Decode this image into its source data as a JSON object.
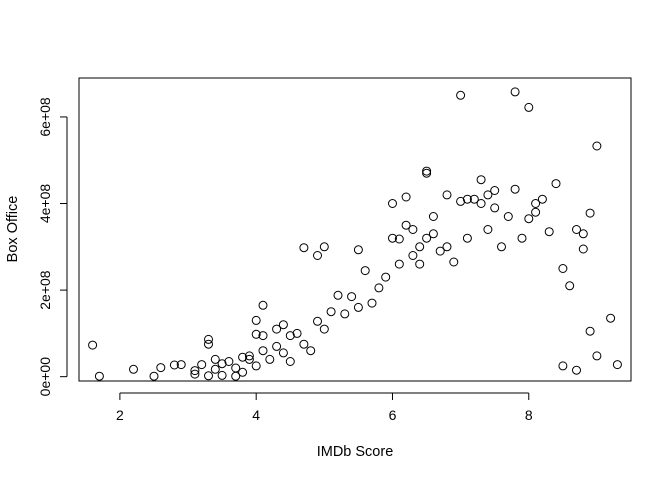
{
  "chart_data": {
    "type": "scatter",
    "title": "",
    "xlabel": "IMDb Score",
    "ylabel": "Box Office",
    "xlim": [
      1.4,
      9.5
    ],
    "ylim": [
      -10000000,
      690000000
    ],
    "xticks": [
      2,
      4,
      6,
      8
    ],
    "xtick_labels": [
      "2",
      "4",
      "6",
      "8"
    ],
    "yticks": [
      0,
      200000000,
      400000000,
      600000000
    ],
    "ytick_labels": [
      "0e+00",
      "2e+08",
      "4e+08",
      "6e+08"
    ],
    "grid": false,
    "legend": "none",
    "marker": "open-circle",
    "color": "#000000",
    "series": [
      {
        "points": [
          [
            1.6,
            73000000
          ],
          [
            1.7,
            1000000
          ],
          [
            2.2,
            17000000
          ],
          [
            2.5,
            1000000
          ],
          [
            2.6,
            21000000
          ],
          [
            2.8,
            27000000
          ],
          [
            2.9,
            28000000
          ],
          [
            3.1,
            6000000
          ],
          [
            3.1,
            14000000
          ],
          [
            3.2,
            28000000
          ],
          [
            3.3,
            75000000
          ],
          [
            3.3,
            86000000
          ],
          [
            3.3,
            2000000
          ],
          [
            3.4,
            17000000
          ],
          [
            3.4,
            40000000
          ],
          [
            3.5,
            30000000
          ],
          [
            3.5,
            3000000
          ],
          [
            3.6,
            35000000
          ],
          [
            3.7,
            20000000
          ],
          [
            3.7,
            1000000
          ],
          [
            3.8,
            45000000
          ],
          [
            3.8,
            10000000
          ],
          [
            3.9,
            40000000
          ],
          [
            3.9,
            48000000
          ],
          [
            4.0,
            98000000
          ],
          [
            4.0,
            130000000
          ],
          [
            4.0,
            25000000
          ],
          [
            4.1,
            165000000
          ],
          [
            4.1,
            95000000
          ],
          [
            4.1,
            60000000
          ],
          [
            4.2,
            40000000
          ],
          [
            4.3,
            70000000
          ],
          [
            4.3,
            110000000
          ],
          [
            4.4,
            120000000
          ],
          [
            4.4,
            55000000
          ],
          [
            4.5,
            95000000
          ],
          [
            4.5,
            35000000
          ],
          [
            4.6,
            100000000
          ],
          [
            4.7,
            298000000
          ],
          [
            4.7,
            75000000
          ],
          [
            4.8,
            60000000
          ],
          [
            4.9,
            280000000
          ],
          [
            4.9,
            128000000
          ],
          [
            5.0,
            300000000
          ],
          [
            5.0,
            110000000
          ],
          [
            5.1,
            150000000
          ],
          [
            5.2,
            188000000
          ],
          [
            5.3,
            145000000
          ],
          [
            5.4,
            185000000
          ],
          [
            5.5,
            293000000
          ],
          [
            5.5,
            160000000
          ],
          [
            5.6,
            245000000
          ],
          [
            5.7,
            170000000
          ],
          [
            5.8,
            205000000
          ],
          [
            5.9,
            230000000
          ],
          [
            6.0,
            400000000
          ],
          [
            6.0,
            320000000
          ],
          [
            6.1,
            318000000
          ],
          [
            6.1,
            260000000
          ],
          [
            6.2,
            415000000
          ],
          [
            6.2,
            350000000
          ],
          [
            6.3,
            340000000
          ],
          [
            6.3,
            280000000
          ],
          [
            6.4,
            300000000
          ],
          [
            6.4,
            260000000
          ],
          [
            6.5,
            475000000
          ],
          [
            6.5,
            470000000
          ],
          [
            6.5,
            320000000
          ],
          [
            6.6,
            370000000
          ],
          [
            6.6,
            330000000
          ],
          [
            6.7,
            290000000
          ],
          [
            6.8,
            420000000
          ],
          [
            6.8,
            300000000
          ],
          [
            6.9,
            265000000
          ],
          [
            7.0,
            405000000
          ],
          [
            7.0,
            650000000
          ],
          [
            7.1,
            410000000
          ],
          [
            7.1,
            320000000
          ],
          [
            7.2,
            410000000
          ],
          [
            7.3,
            455000000
          ],
          [
            7.3,
            400000000
          ],
          [
            7.4,
            420000000
          ],
          [
            7.4,
            340000000
          ],
          [
            7.5,
            430000000
          ],
          [
            7.5,
            390000000
          ],
          [
            7.6,
            300000000
          ],
          [
            7.7,
            370000000
          ],
          [
            7.8,
            433000000
          ],
          [
            7.8,
            658000000
          ],
          [
            7.9,
            320000000
          ],
          [
            8.0,
            622000000
          ],
          [
            8.0,
            365000000
          ],
          [
            8.1,
            400000000
          ],
          [
            8.1,
            380000000
          ],
          [
            8.2,
            410000000
          ],
          [
            8.3,
            335000000
          ],
          [
            8.4,
            446000000
          ],
          [
            8.5,
            250000000
          ],
          [
            8.6,
            210000000
          ],
          [
            8.7,
            340000000
          ],
          [
            8.8,
            330000000
          ],
          [
            8.8,
            295000000
          ],
          [
            8.9,
            378000000
          ],
          [
            8.9,
            105000000
          ],
          [
            9.0,
            533000000
          ],
          [
            9.0,
            48000000
          ],
          [
            9.2,
            135000000
          ],
          [
            9.3,
            28000000
          ],
          [
            8.5,
            25000000
          ],
          [
            8.7,
            15000000
          ]
        ]
      }
    ]
  }
}
